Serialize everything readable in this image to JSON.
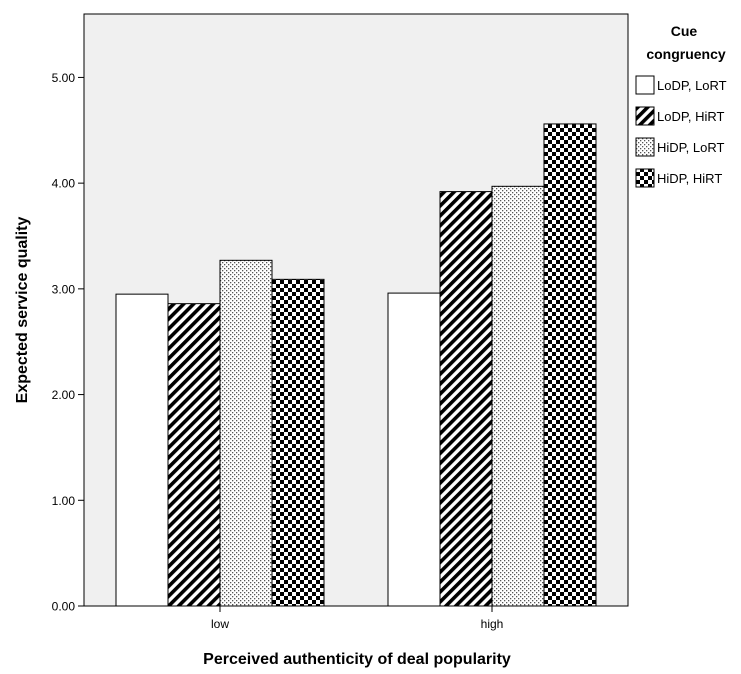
{
  "chart_data": {
    "type": "bar",
    "title": "",
    "xlabel": "Perceived authenticity of deal popularity",
    "ylabel": "Expected service quality",
    "categories": [
      "low",
      "high"
    ],
    "ylim": [
      0,
      5.6
    ],
    "yticks": [
      "0.00",
      "1.00",
      "2.00",
      "3.00",
      "4.00",
      "5.00"
    ],
    "ytick_values": [
      0,
      1,
      2,
      3,
      4,
      5
    ],
    "grid": false,
    "legend_title": [
      "Cue",
      "congruency"
    ],
    "legend_position": "right",
    "series": [
      {
        "name": "LoDP, LoRT",
        "pattern": "solid-white",
        "values": [
          2.95,
          2.96
        ]
      },
      {
        "name": "LoDP, HiRT",
        "pattern": "diagonal-stripes",
        "values": [
          2.86,
          3.92
        ]
      },
      {
        "name": "HiDP, LoRT",
        "pattern": "dots",
        "values": [
          3.27,
          3.97
        ]
      },
      {
        "name": "HiDP, HiRT",
        "pattern": "checkerboard",
        "values": [
          3.09,
          4.56
        ]
      }
    ]
  },
  "colors": {
    "plot_background": "#f0f0f0",
    "bar_stroke": "#000000",
    "bar_fill": "#ffffff"
  }
}
